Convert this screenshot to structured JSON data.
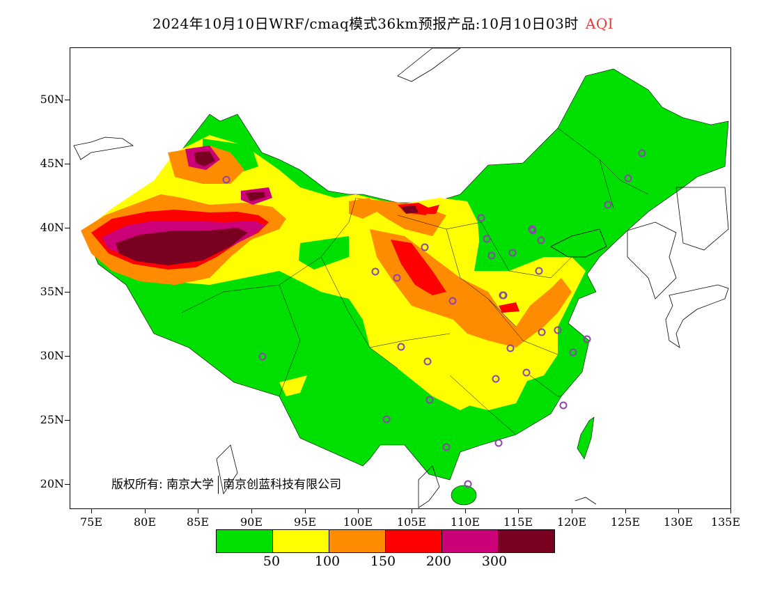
{
  "title": {
    "main": "2024年10月10日WRF/cmaq模式36km预报产品:10月10日03时",
    "variable": "AQI",
    "variable_color": "#e53935"
  },
  "axes": {
    "lat_labels": [
      "50N",
      "45N",
      "40N",
      "35N",
      "30N",
      "25N",
      "20N"
    ],
    "lon_labels": [
      "75E",
      "80E",
      "85E",
      "90E",
      "95E",
      "100E",
      "105E",
      "110E",
      "115E",
      "120E",
      "125E",
      "130E",
      "135E"
    ]
  },
  "copyright": {
    "prefix": "版权所有:",
    "org1": "南京大学",
    "org2": "南京创蓝科技有限公司"
  },
  "legend": {
    "colors": [
      "#00e000",
      "#ffff00",
      "#ff8c00",
      "#ff0000",
      "#cc0077",
      "#7a0021"
    ],
    "labels": [
      "50",
      "100",
      "150",
      "200",
      "300"
    ]
  },
  "stations_marker_color": "#8e44ad"
}
